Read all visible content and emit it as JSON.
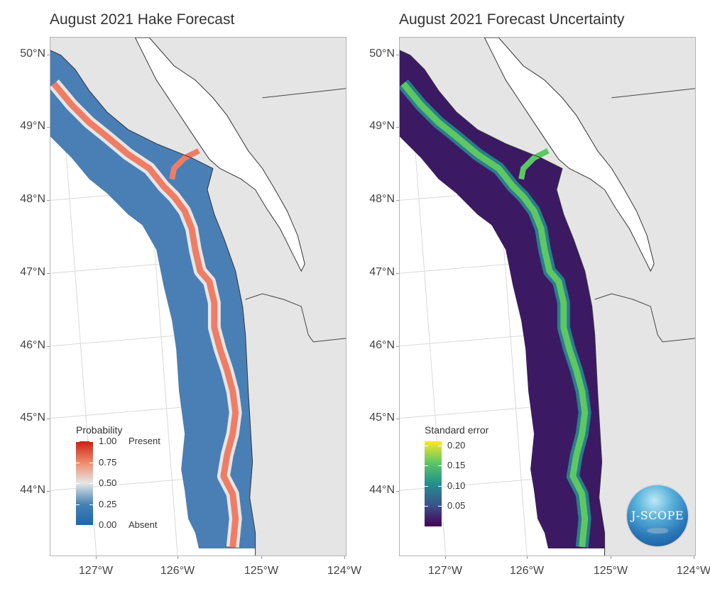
{
  "panels": [
    {
      "id": "left",
      "title": "August 2021 Hake Forecast",
      "legend": {
        "title": "Probability",
        "ticks": [
          "1.00",
          "0.75",
          "0.50",
          "0.25",
          "0.00"
        ],
        "tick_values": [
          1.0,
          0.75,
          0.5,
          0.25,
          0.0
        ],
        "end_labels": {
          "top": "Present",
          "bottom": "Absent"
        },
        "palette": [
          "#2166ac",
          "#4682b4",
          "#e6e6e6",
          "#ef8a6a",
          "#cc1f16"
        ],
        "range": [
          0,
          1
        ]
      },
      "colors": {
        "low": "#4a7fb5",
        "mid": "#e6e6e6",
        "high": "#ef7d66"
      }
    },
    {
      "id": "right",
      "title": "August 2021 Forecast Uncertainty",
      "legend": {
        "title": "Standard error",
        "ticks": [
          "0.20",
          "0.15",
          "0.10",
          "0.05"
        ],
        "tick_values": [
          0.2,
          0.15,
          0.1,
          0.05
        ],
        "palette": [
          "#440154",
          "#3b528b",
          "#21908d",
          "#5dc863",
          "#fde725"
        ],
        "range": [
          0.0,
          0.21
        ]
      },
      "colors": {
        "low": "#3b1a63",
        "mid": "#2b7d8c",
        "high": "#5dc863"
      },
      "logo": "J-SCOPE"
    }
  ],
  "axes": {
    "lat_labels": [
      "50°N",
      "49°N",
      "48°N",
      "47°N",
      "46°N",
      "45°N",
      "44°N"
    ],
    "lon_labels": [
      "127°W",
      "126°W",
      "125°W",
      "124°W"
    ]
  },
  "colors": {
    "land": "#e5e5e5",
    "ocean_background": "#ffffff",
    "coast_line": "#333333",
    "grid": "#d9d9d9"
  }
}
